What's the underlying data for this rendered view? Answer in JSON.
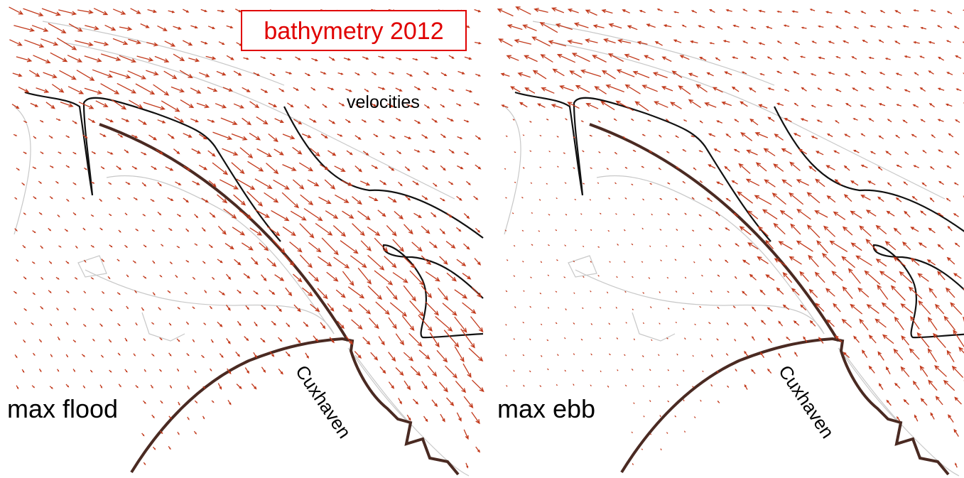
{
  "title": "bathymetry 2012",
  "label": "velocities",
  "panels": [
    {
      "label": "max flood",
      "place": "Cuxhaven"
    },
    {
      "label": "max ebb",
      "place": "Cuxhaven"
    }
  ]
}
